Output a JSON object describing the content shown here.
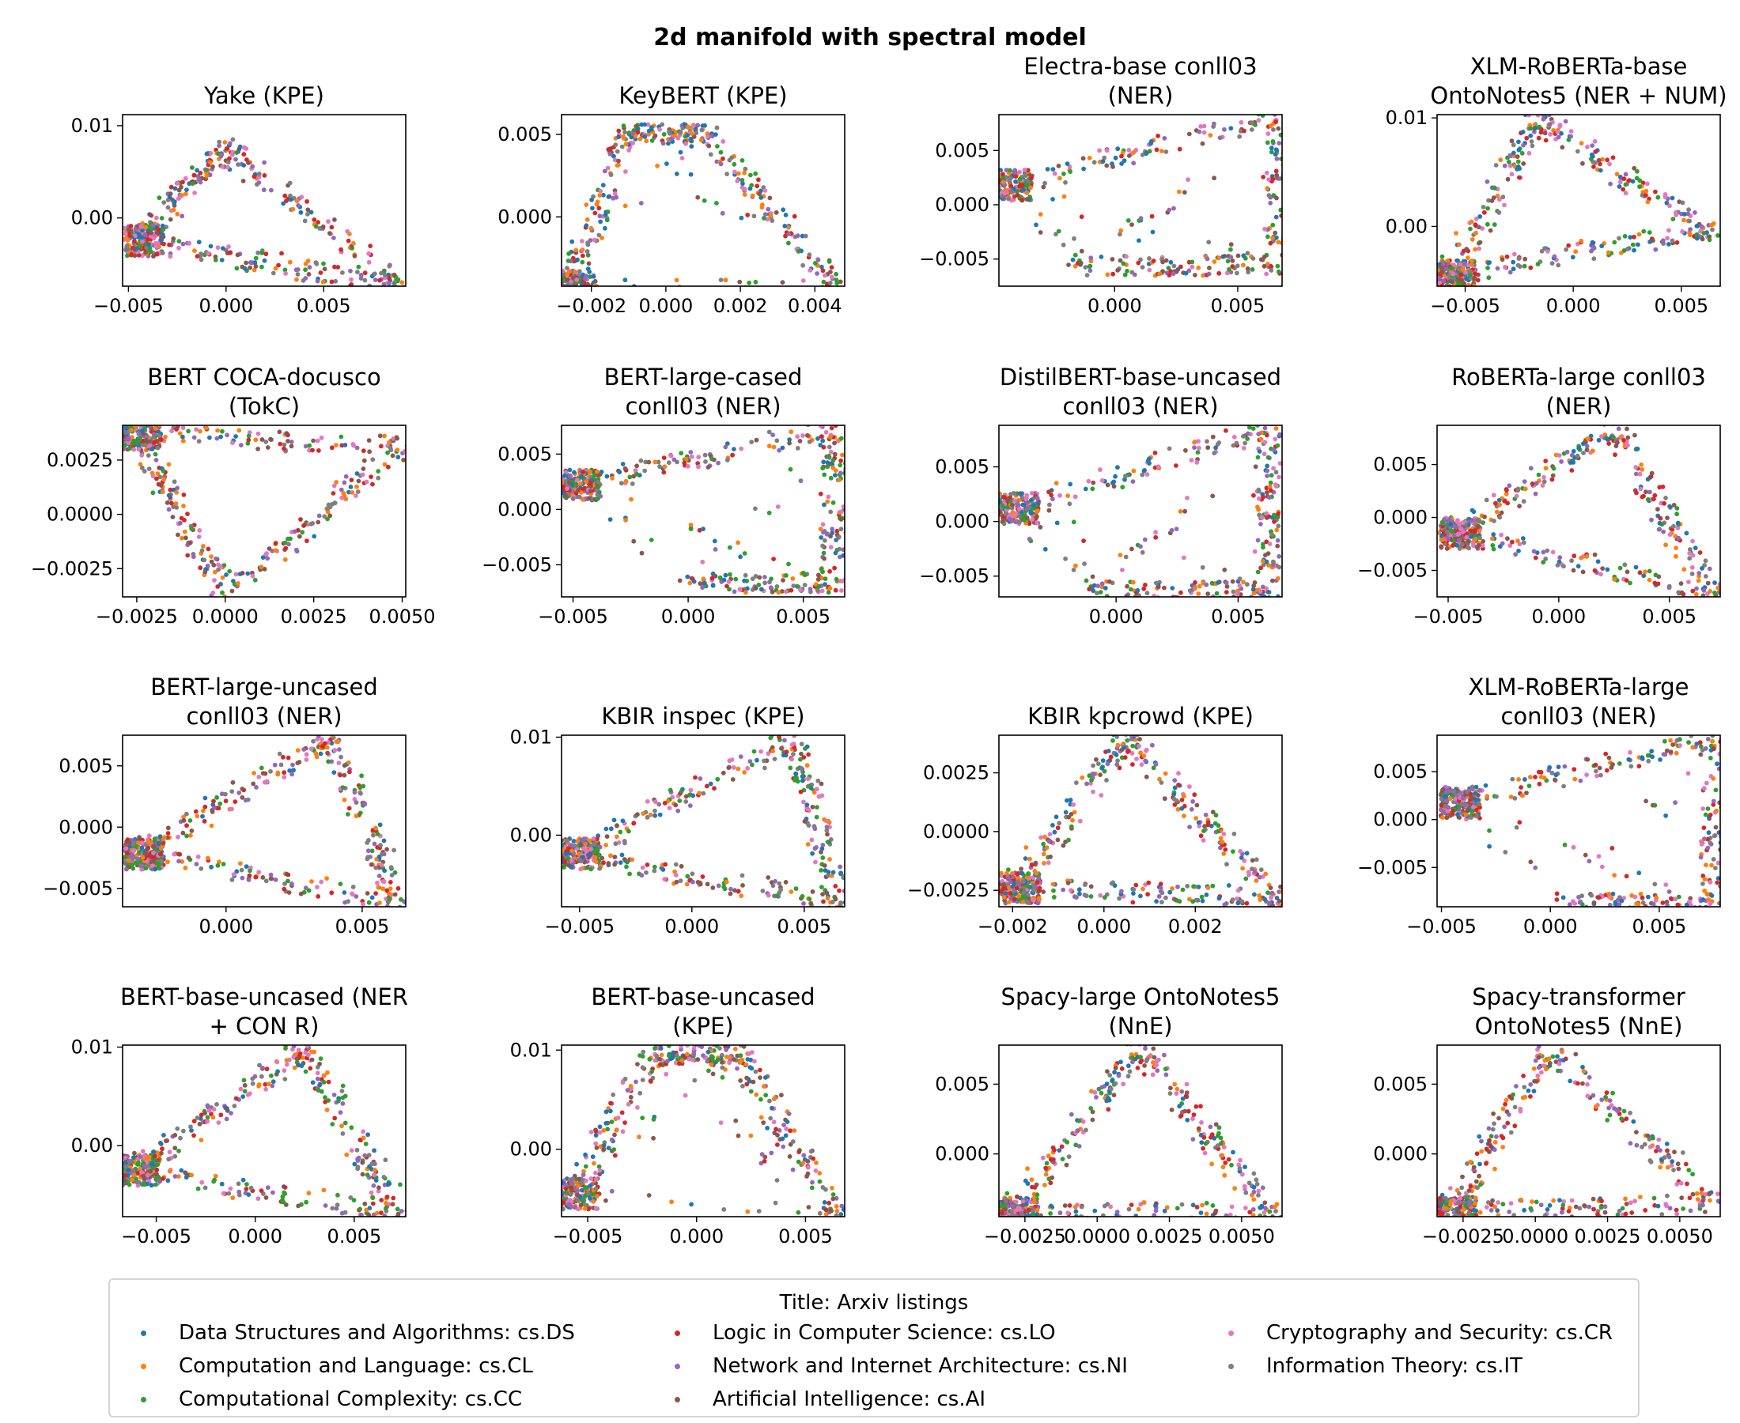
{
  "figure_title": "2d manifold with spectral model",
  "colors": [
    "#1f77b4",
    "#ff7f0e",
    "#2ca02c",
    "#d62728",
    "#9467bd",
    "#8c564b",
    "#e377c2",
    "#7f7f7f"
  ],
  "legend": {
    "title": "Title: Arxiv listings",
    "placement": "lower center",
    "entries": [
      "Data Structures and Algorithms: cs.DS",
      "Computation and Language: cs.CL",
      "Computational Complexity: cs.CC",
      "Logic in Computer Science: cs.LO",
      "Network and Internet Architecture: cs.NI",
      "Artificial Intelligence: cs.AI",
      "Cryptography and Security: cs.CR",
      "Information Theory: cs.IT"
    ]
  },
  "chart_data": [
    {
      "type": "scatter",
      "title": "Yake (KPE)",
      "xlim": [
        -0.0053,
        0.0092
      ],
      "ylim": [
        -0.0074,
        0.0112
      ],
      "xticks": [
        -0.005,
        0.0,
        0.005
      ],
      "xticklabels": [
        "−0.005",
        "0.000",
        "0.005"
      ],
      "yticks": [
        0.0,
        0.01
      ],
      "yticklabels": [
        "0.00",
        "0.01"
      ],
      "shape": "triangle",
      "points": [
        [
          -0.0046,
          -0.0025
        ],
        [
          0.0,
          0.0075
        ],
        [
          0.0088,
          -0.0072
        ]
      ]
    },
    {
      "type": "scatter",
      "title": "KeyBERT (KPE)",
      "xlim": [
        -0.0028,
        0.0048
      ],
      "ylim": [
        -0.0042,
        0.0062
      ],
      "xticks": [
        -0.002,
        0.0,
        0.002,
        0.004
      ],
      "xticklabels": [
        "−0.002",
        "0.000",
        "0.002",
        "0.004"
      ],
      "yticks": [
        0.0,
        0.005
      ],
      "yticklabels": [
        "0.000",
        "0.005"
      ],
      "shape": "horseshoe",
      "points": [
        [
          -0.0026,
          -0.0042
        ],
        [
          -0.001,
          0.005
        ],
        [
          0.001,
          0.005
        ],
        [
          0.0046,
          -0.0042
        ]
      ]
    },
    {
      "type": "scatter",
      "title": "Electra-base conll03 (NER)",
      "xlim": [
        -0.0047,
        0.0068
      ],
      "ylim": [
        -0.0075,
        0.0083
      ],
      "xticks": [
        0.0,
        0.005
      ],
      "xticklabels": [
        "0.000",
        "0.005"
      ],
      "yticks": [
        -0.005,
        0.0,
        0.005
      ],
      "yticklabels": [
        "−0.005",
        "0.000",
        "0.005"
      ],
      "shape": "cone",
      "points": [
        [
          -0.0045,
          0.0018
        ],
        [
          0.0066,
          0.0082
        ],
        [
          0.0066,
          -0.0056
        ],
        [
          -0.0012,
          -0.0056
        ]
      ]
    },
    {
      "type": "scatter",
      "title": "XLM-RoBERTa-base OntoNotes5 (NER + NUM)",
      "xlim": [
        -0.0063,
        0.0068
      ],
      "ylim": [
        -0.0055,
        0.0103
      ],
      "xticks": [
        -0.005,
        0.0,
        0.005
      ],
      "xticklabels": [
        "−0.005",
        "0.000",
        "0.005"
      ],
      "yticks": [
        0.0,
        0.01
      ],
      "yticklabels": [
        "0.00",
        "0.01"
      ],
      "shape": "triangle",
      "points": [
        [
          -0.0058,
          -0.0045
        ],
        [
          -0.0016,
          0.0098
        ],
        [
          0.0062,
          -0.0004
        ]
      ]
    },
    {
      "type": "scatter",
      "title": "BERT COCA-docusco (TokC)",
      "xlim": [
        -0.0029,
        0.0051
      ],
      "ylim": [
        -0.0038,
        0.0041
      ],
      "xticks": [
        -0.0025,
        0.0,
        0.0025,
        0.005
      ],
      "xticklabels": [
        "−0.0025",
        "0.0000",
        "0.0025",
        "0.0050"
      ],
      "yticks": [
        -0.0025,
        0.0,
        0.0025
      ],
      "yticklabels": [
        "−0.0025",
        "0.0000",
        "0.0025"
      ],
      "shape": "bowl",
      "points": [
        [
          -0.0026,
          0.0037
        ],
        [
          0.0,
          -0.0036
        ],
        [
          0.005,
          0.0031
        ]
      ]
    },
    {
      "type": "scatter",
      "title": "BERT-large-cased conll03 (NER)",
      "xlim": [
        -0.0055,
        0.0068
      ],
      "ylim": [
        -0.0079,
        0.0076
      ],
      "xticks": [
        -0.005,
        0.0,
        0.005
      ],
      "xticklabels": [
        "−0.005",
        "0.000",
        "0.005"
      ],
      "yticks": [
        -0.005,
        0.0,
        0.005
      ],
      "yticklabels": [
        "−0.005",
        "0.000",
        "0.005"
      ],
      "shape": "cone",
      "points": [
        [
          -0.005,
          0.0022
        ],
        [
          0.0063,
          0.0072
        ],
        [
          0.0063,
          -0.0066
        ],
        [
          0.0005,
          -0.0066
        ]
      ]
    },
    {
      "type": "scatter",
      "title": "DistilBERT-base-uncased conll03 (NER)",
      "xlim": [
        -0.0048,
        0.0068
      ],
      "ylim": [
        -0.0069,
        0.0088
      ],
      "xticks": [
        0.0,
        0.005
      ],
      "xticklabels": [
        "0.000",
        "0.005"
      ],
      "yticks": [
        -0.005,
        0.0,
        0.005
      ],
      "yticklabels": [
        "−0.005",
        "0.000",
        "0.005"
      ],
      "shape": "cone",
      "points": [
        [
          -0.0043,
          0.0012
        ],
        [
          0.0062,
          0.0085
        ],
        [
          0.0062,
          -0.0064
        ],
        [
          -0.0008,
          -0.0064
        ]
      ]
    },
    {
      "type": "scatter",
      "title": "RoBERTa-large conll03 (NER)",
      "xlim": [
        -0.0055,
        0.0073
      ],
      "ylim": [
        -0.0075,
        0.0087
      ],
      "xticks": [
        -0.005,
        0.0,
        0.005
      ],
      "xticklabels": [
        "−0.005",
        "0.000",
        "0.005"
      ],
      "yticks": [
        -0.005,
        0.0,
        0.005
      ],
      "yticklabels": [
        "−0.005",
        "0.000",
        "0.005"
      ],
      "shape": "triangle",
      "points": [
        [
          -0.0048,
          -0.0015
        ],
        [
          0.0025,
          0.0083
        ],
        [
          0.007,
          -0.0072
        ]
      ]
    },
    {
      "type": "scatter",
      "title": "BERT-large-uncased conll03 (NER)",
      "xlim": [
        -0.0038,
        0.0066
      ],
      "ylim": [
        -0.0065,
        0.0075
      ],
      "xticks": [
        0.0,
        0.005
      ],
      "xticklabels": [
        "0.000",
        "0.005"
      ],
      "yticks": [
        -0.005,
        0.0,
        0.005
      ],
      "yticklabels": [
        "−0.005",
        "0.000",
        "0.005"
      ],
      "shape": "triangle",
      "points": [
        [
          -0.0033,
          -0.0022
        ],
        [
          0.0038,
          0.0072
        ],
        [
          0.0064,
          -0.0062
        ]
      ]
    },
    {
      "type": "scatter",
      "title": "KBIR inspec (KPE)",
      "xlim": [
        -0.0058,
        0.0068
      ],
      "ylim": [
        -0.0073,
        0.0102
      ],
      "xticks": [
        -0.005,
        0.0,
        0.005
      ],
      "xticklabels": [
        "−0.005",
        "0.000",
        "0.005"
      ],
      "yticks": [
        0.0,
        0.01
      ],
      "yticklabels": [
        "0.00",
        "0.01"
      ],
      "shape": "triangle",
      "points": [
        [
          -0.0053,
          -0.0019
        ],
        [
          0.0045,
          0.0098
        ],
        [
          0.0066,
          -0.0068
        ]
      ]
    },
    {
      "type": "scatter",
      "title": "KBIR kpcrowd (KPE)",
      "xlim": [
        -0.0023,
        0.0039
      ],
      "ylim": [
        -0.0032,
        0.0041
      ],
      "xticks": [
        -0.002,
        0.0,
        0.002,
        0.004
      ],
      "xticklabels": [
        "−0.002",
        "0.000",
        "0.002",
        "0.004"
      ],
      "yticks": [
        -0.0025,
        0.0,
        0.0025
      ],
      "yticklabels": [
        "−0.0025",
        "0.0000",
        "0.0025"
      ],
      "shape": "triangle",
      "points": [
        [
          -0.002,
          -0.0024
        ],
        [
          0.0005,
          0.0039
        ],
        [
          0.0038,
          -0.0028
        ]
      ]
    },
    {
      "type": "scatter",
      "title": "XLM-RoBERTa-large conll03 (NER)",
      "xlim": [
        -0.0052,
        0.0078
      ],
      "ylim": [
        -0.0091,
        0.0088
      ],
      "xticks": [
        -0.005,
        0.0,
        0.005
      ],
      "xticklabels": [
        "−0.005",
        "0.000",
        "0.005"
      ],
      "yticks": [
        -0.005,
        0.0,
        0.005
      ],
      "yticklabels": [
        "−0.005",
        "0.000",
        "0.005"
      ],
      "shape": "cone",
      "points": [
        [
          -0.0045,
          0.0018
        ],
        [
          0.0075,
          0.0085
        ],
        [
          0.0075,
          -0.0088
        ],
        [
          0.001,
          -0.0088
        ]
      ]
    },
    {
      "type": "scatter",
      "title": "BERT-base-uncased (NER + CON R)",
      "xlim": [
        -0.0067,
        0.0076
      ],
      "ylim": [
        -0.0072,
        0.0102
      ],
      "xticks": [
        -0.005,
        0.0,
        0.005
      ],
      "xticklabels": [
        "−0.005",
        "0.000",
        "0.005"
      ],
      "yticks": [
        0.0,
        0.01
      ],
      "yticklabels": [
        "0.00",
        "0.01"
      ],
      "shape": "triangle",
      "points": [
        [
          -0.0062,
          -0.0025
        ],
        [
          0.0025,
          0.0098
        ],
        [
          0.0072,
          -0.0068
        ]
      ]
    },
    {
      "type": "scatter",
      "title": "BERT-base-uncased (KPE)",
      "xlim": [
        -0.0062,
        0.0068
      ],
      "ylim": [
        -0.0068,
        0.0105
      ],
      "xticks": [
        -0.005,
        0.0,
        0.005
      ],
      "xticklabels": [
        "−0.005",
        "0.000",
        "0.005"
      ],
      "yticks": [
        0.0,
        0.01
      ],
      "yticklabels": [
        "0.00",
        "0.01"
      ],
      "shape": "horseshoe",
      "points": [
        [
          -0.0058,
          -0.0045
        ],
        [
          -0.002,
          0.0095
        ],
        [
          0.002,
          0.0095
        ],
        [
          0.0064,
          -0.0065
        ]
      ]
    },
    {
      "type": "scatter",
      "title": "Spacy-large OntoNotes5 (NnE)",
      "xlim": [
        -0.0034,
        0.0064
      ],
      "ylim": [
        -0.0045,
        0.0078
      ],
      "xticks": [
        -0.0025,
        0.0,
        0.0025,
        0.005
      ],
      "xticklabels": [
        "−0.0025",
        "0.0000",
        "0.0025",
        "0.0050"
      ],
      "yticks": [
        0.0,
        0.005
      ],
      "yticklabels": [
        "0.000",
        "0.005"
      ],
      "shape": "dome",
      "points": [
        [
          -0.003,
          -0.0042
        ],
        [
          0.0015,
          0.0075
        ],
        [
          0.006,
          -0.0042
        ]
      ]
    },
    {
      "type": "scatter",
      "title": "Spacy-transformer OntoNotes5 (NnE)",
      "xlim": [
        -0.0034,
        0.0064
      ],
      "ylim": [
        -0.0045,
        0.0078
      ],
      "xticks": [
        -0.0025,
        0.0,
        0.0025,
        0.005
      ],
      "xticklabels": [
        "−0.0025",
        "0.0000",
        "0.0025",
        "0.0050"
      ],
      "yticks": [
        0.0,
        0.005
      ],
      "yticklabels": [
        "0.000",
        "0.005"
      ],
      "shape": "dome",
      "points": [
        [
          -0.003,
          -0.0042
        ],
        [
          0.0005,
          0.0075
        ],
        [
          0.0062,
          -0.0035
        ]
      ]
    }
  ]
}
